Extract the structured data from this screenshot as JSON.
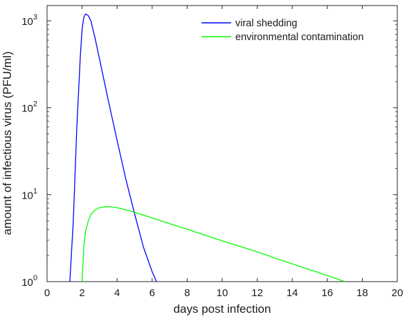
{
  "chart_data": {
    "type": "line",
    "xlabel": "days post infection",
    "ylabel": "amount of infectious virus (PFU/ml)",
    "xlim": [
      0,
      20
    ],
    "ylim": [
      1,
      1500
    ],
    "yscale": "log",
    "grid": false,
    "legend_position": "top-right",
    "x_ticks": [
      0,
      2,
      4,
      6,
      8,
      10,
      12,
      14,
      16,
      18,
      20
    ],
    "y_ticks": [
      {
        "value": 1,
        "base": "10",
        "exp": "0"
      },
      {
        "value": 10,
        "base": "10",
        "exp": "1"
      },
      {
        "value": 100,
        "base": "10",
        "exp": "2"
      },
      {
        "value": 1000,
        "base": "10",
        "exp": "3"
      }
    ],
    "series": [
      {
        "name": "viral shedding",
        "color": "#0000ff",
        "x": [
          1.3,
          1.5,
          1.7,
          1.9,
          2.0,
          2.1,
          2.2,
          2.35,
          2.5,
          2.75,
          3.0,
          3.5,
          4.0,
          4.5,
          5.0,
          5.5,
          6.0,
          6.25
        ],
        "y": [
          1.0,
          5.0,
          60,
          400,
          800,
          1100,
          1200,
          1150,
          1000,
          620,
          360,
          120,
          42,
          15,
          6.0,
          2.5,
          1.3,
          1.0
        ]
      },
      {
        "name": "environmental contamination",
        "color": "#00ff00",
        "x": [
          2.0,
          2.05,
          2.1,
          2.2,
          2.35,
          2.5,
          2.75,
          3.0,
          3.25,
          3.5,
          4.0,
          5.0,
          6.0,
          8.0,
          10.0,
          12.0,
          14.0,
          16.0,
          17.0
        ],
        "y": [
          1.0,
          1.6,
          2.5,
          3.8,
          5.0,
          5.9,
          6.7,
          7.1,
          7.25,
          7.3,
          7.1,
          6.3,
          5.4,
          4.0,
          2.95,
          2.2,
          1.6,
          1.18,
          1.0
        ]
      }
    ]
  }
}
